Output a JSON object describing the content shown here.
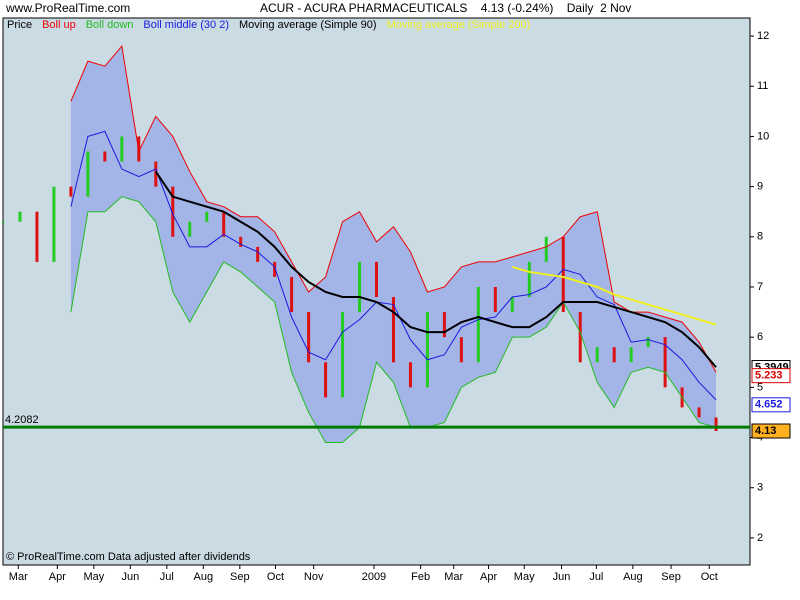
{
  "site": "www.ProRealTime.com",
  "chart_data": {
    "type": "stock",
    "title": "ACUR - ACURA PHARMACEUTICALS    4.13 (-0.24%)    Daily  2 Nov",
    "footer": "© ProRealTime.com  Data adjusted after dividends",
    "legend": "top-left",
    "background": "#cbdbe4",
    "band_color": "#a3b4e6",
    "x": [
      0,
      2,
      4,
      6,
      8,
      10,
      12,
      14,
      16,
      18,
      20,
      22,
      24,
      26,
      28,
      30,
      32,
      34,
      36,
      38,
      40,
      42,
      44,
      46,
      48,
      50,
      52,
      54,
      56,
      58,
      60,
      62,
      64,
      66,
      68,
      70,
      72,
      74,
      76,
      78,
      80,
      82,
      84
    ],
    "xlim": [
      0,
      88
    ],
    "xticks": [
      {
        "value": 1.8,
        "label": "Mar"
      },
      {
        "value": 6.4,
        "label": "Apr"
      },
      {
        "value": 10.7,
        "label": "May"
      },
      {
        "value": 15,
        "label": "Jun"
      },
      {
        "value": 19.3,
        "label": "Jul"
      },
      {
        "value": 23.6,
        "label": "Aug"
      },
      {
        "value": 27.9,
        "label": "Sep"
      },
      {
        "value": 32.1,
        "label": "Oct"
      },
      {
        "value": 36.6,
        "label": "Nov"
      },
      {
        "value": 43.7,
        "label": "2009"
      },
      {
        "value": 49.2,
        "label": "Feb"
      },
      {
        "value": 53.1,
        "label": "Mar"
      },
      {
        "value": 57.2,
        "label": "Apr"
      },
      {
        "value": 61.4,
        "label": "May"
      },
      {
        "value": 65.8,
        "label": "Jun"
      },
      {
        "value": 69.9,
        "label": "Jul"
      },
      {
        "value": 74.2,
        "label": "Aug"
      },
      {
        "value": 78.7,
        "label": "Sep"
      },
      {
        "value": 83.2,
        "label": "Oct"
      }
    ],
    "ylim": [
      1.46,
      12.36
    ],
    "yticks": [
      2,
      3,
      4,
      5,
      6,
      7,
      8,
      9,
      10,
      11,
      12
    ],
    "band": [
      "Boll up",
      "Boll down"
    ],
    "series": [
      {
        "name": "Price",
        "color": "#000000",
        "style": "bars",
        "up_color": "#22cc22",
        "down_color": "#dd1111",
        "values": [
          8.3,
          8.5,
          7.5,
          9.0,
          8.8,
          9.7,
          9.5,
          10.0,
          9.5,
          9.0,
          8.0,
          8.3,
          8.5,
          8.0,
          7.8,
          7.5,
          7.2,
          6.5,
          5.5,
          4.8,
          6.5,
          7.5,
          6.8,
          5.5,
          5.0,
          6.5,
          6.0,
          5.5,
          7.0,
          6.5,
          6.8,
          7.5,
          8.0,
          6.5,
          5.5,
          5.8,
          5.5,
          5.8,
          6.0,
          5.0,
          4.6,
          4.4,
          4.13
        ]
      },
      {
        "name": "Boll up",
        "color": "#ee0000",
        "style": "line",
        "width": 1,
        "values": [
          null,
          null,
          null,
          null,
          10.7,
          11.5,
          11.4,
          11.8,
          9.7,
          10.4,
          10.0,
          9.3,
          8.7,
          8.6,
          8.4,
          8.4,
          8.1,
          7.5,
          6.9,
          7.2,
          8.3,
          8.5,
          7.9,
          8.2,
          7.7,
          6.9,
          7.0,
          7.4,
          7.5,
          7.5,
          7.6,
          7.7,
          7.8,
          8.0,
          8.4,
          8.5,
          6.7,
          6.5,
          6.5,
          6.4,
          6.3,
          5.9,
          5.3
        ]
      },
      {
        "name": "Boll down",
        "color": "#22bb22",
        "style": "line",
        "width": 1,
        "values": [
          null,
          null,
          null,
          null,
          6.5,
          8.5,
          8.5,
          8.8,
          8.7,
          8.3,
          6.9,
          6.3,
          6.9,
          7.5,
          7.3,
          7.0,
          6.7,
          5.3,
          4.5,
          3.9,
          3.9,
          4.2,
          5.5,
          5.1,
          4.2,
          4.2,
          4.3,
          5.0,
          5.2,
          5.3,
          6.0,
          6.0,
          6.2,
          6.7,
          6.1,
          5.1,
          4.6,
          5.3,
          5.4,
          5.3,
          4.8,
          4.3,
          4.2
        ]
      },
      {
        "name": "Boll middle (30 2)",
        "color": "#1a1ae0",
        "style": "line",
        "width": 1,
        "values": [
          null,
          null,
          null,
          null,
          8.6,
          10.0,
          10.1,
          9.35,
          9.2,
          9.35,
          8.45,
          7.8,
          7.8,
          8.05,
          7.85,
          7.7,
          7.4,
          6.4,
          5.7,
          5.55,
          6.1,
          6.35,
          6.7,
          6.65,
          5.95,
          5.55,
          5.65,
          6.2,
          6.35,
          6.4,
          6.8,
          6.85,
          7.0,
          7.35,
          7.25,
          6.8,
          6.65,
          5.9,
          5.95,
          5.85,
          5.55,
          5.1,
          4.75
        ]
      },
      {
        "name": "Moving average (Simple 90)",
        "color": "#000000",
        "style": "line",
        "width": 2,
        "values": [
          null,
          null,
          null,
          null,
          null,
          null,
          null,
          null,
          null,
          9.3,
          8.8,
          8.7,
          8.6,
          8.5,
          8.3,
          8.1,
          7.8,
          7.4,
          7.1,
          6.9,
          6.8,
          6.8,
          6.7,
          6.5,
          6.2,
          6.1,
          6.1,
          6.3,
          6.4,
          6.3,
          6.2,
          6.2,
          6.4,
          6.7,
          6.7,
          6.7,
          6.6,
          6.5,
          6.4,
          6.3,
          6.1,
          5.8,
          5.4
        ]
      },
      {
        "name": "Moving average (Simple 200)",
        "color": "#f0f020",
        "style": "line",
        "width": 2,
        "values": [
          null,
          null,
          null,
          null,
          null,
          null,
          null,
          null,
          null,
          null,
          null,
          null,
          null,
          null,
          null,
          null,
          null,
          null,
          null,
          null,
          null,
          null,
          null,
          null,
          null,
          null,
          null,
          null,
          null,
          null,
          7.4,
          7.3,
          7.25,
          7.2,
          7.1,
          7.0,
          6.85,
          6.75,
          6.65,
          6.55,
          6.45,
          6.35,
          6.25
        ]
      }
    ],
    "hline": {
      "value": 4.2082,
      "color": "#007a00"
    },
    "last_labels": [
      {
        "value": 5.3949,
        "color": "#000000",
        "background": "#ffffff"
      },
      {
        "value": 5.233,
        "color": "#dd0000",
        "background": "#ffffff"
      },
      {
        "value": 4.652,
        "color": "#1a1ae0",
        "background": "#ffffff"
      },
      {
        "value": 4.13,
        "color": "#000000",
        "background": "#ffb020"
      }
    ]
  }
}
